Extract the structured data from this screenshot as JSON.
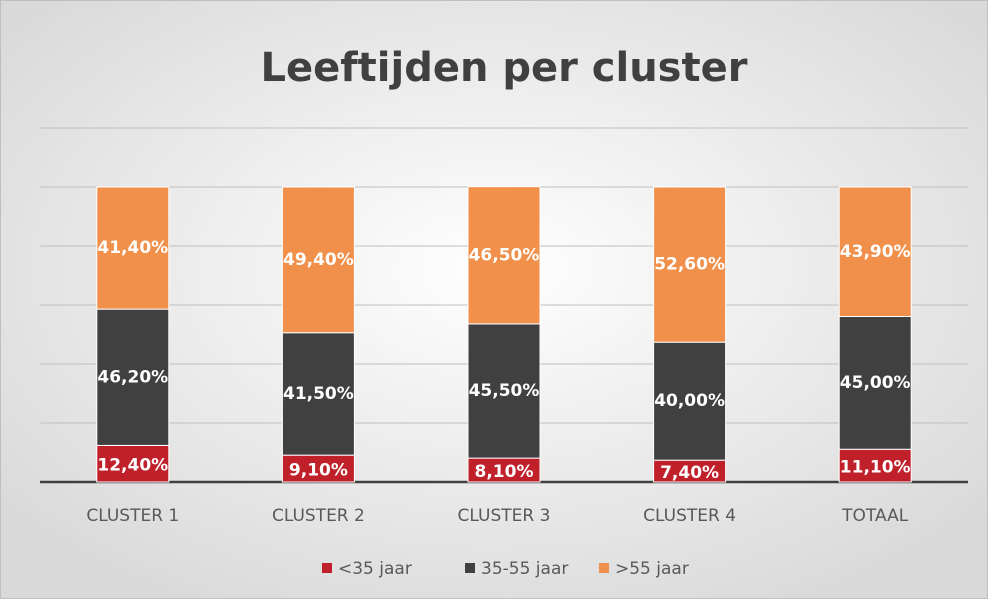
{
  "chart_data": {
    "type": "stacked_bar",
    "title": "Leeftijden per cluster",
    "categories": [
      "CLUSTER 1",
      "CLUSTER 2",
      "CLUSTER 3",
      "CLUSTER 4",
      "TOTAAL"
    ],
    "series": [
      {
        "name": "<35 jaar",
        "color": "#c0202a",
        "values": [
          12.4,
          9.1,
          8.1,
          7.4,
          11.1
        ],
        "value_labels": [
          "12,40%",
          "9,10%",
          "8,10%",
          "7,40%",
          "11,10%"
        ]
      },
      {
        "name": "35-55 jaar",
        "color": "#404040",
        "values": [
          46.2,
          41.5,
          45.5,
          40.0,
          45.0
        ],
        "value_labels": [
          "46,20%",
          "41,50%",
          "45,50%",
          "40,00%",
          "45,00%"
        ]
      },
      {
        "name": ">55 jaar",
        "color": "#f0904a",
        "values": [
          41.4,
          49.4,
          46.5,
          52.6,
          43.9
        ],
        "value_labels": [
          "41,40%",
          "49,40%",
          "46,50%",
          "52,60%",
          "43,90%"
        ]
      }
    ],
    "ylim": [
      0,
      120
    ],
    "yticks": [
      0,
      20,
      40,
      60,
      80,
      100,
      120
    ],
    "grid": true,
    "legend": "bottom"
  }
}
